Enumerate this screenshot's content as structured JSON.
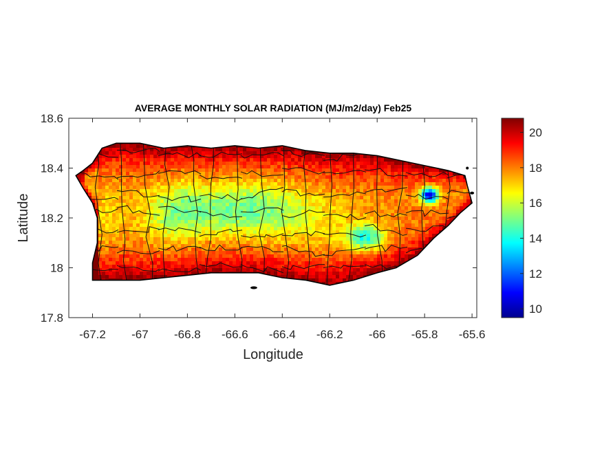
{
  "chart_data": {
    "type": "heatmap",
    "title": "AVERAGE MONTHLY SOLAR RADIATION (MJ/m2/day) Feb25",
    "xlabel": "Longitude",
    "ylabel": "Latitude",
    "xlim": [
      -67.3,
      -65.58
    ],
    "ylim": [
      17.8,
      18.6
    ],
    "xticks": [
      -67.2,
      -67,
      -66.8,
      -66.6,
      -66.4,
      -66.2,
      -66,
      -65.8,
      -65.6
    ],
    "xtick_labels": [
      "-67.2",
      "-67",
      "-66.8",
      "-66.6",
      "-66.4",
      "-66.2",
      "-66",
      "-65.8",
      "-65.6"
    ],
    "yticks": [
      17.8,
      18,
      18.2,
      18.4,
      18.6
    ],
    "ytick_labels": [
      "17.8",
      "18",
      "18.2",
      "18.4",
      "18.6"
    ],
    "colorbar": {
      "colormap": "jet",
      "range": [
        9.5,
        20.8
      ],
      "ticks": [
        10,
        12,
        14,
        16,
        18,
        20
      ],
      "tick_labels": [
        "10",
        "12",
        "14",
        "16",
        "18",
        "20"
      ]
    },
    "island_outline": [
      [
        -67.27,
        18.37
      ],
      [
        -67.24,
        18.39
      ],
      [
        -67.2,
        18.42
      ],
      [
        -67.16,
        18.48
      ],
      [
        -67.1,
        18.5
      ],
      [
        -67.0,
        18.5
      ],
      [
        -66.9,
        18.48
      ],
      [
        -66.8,
        18.49
      ],
      [
        -66.7,
        18.48
      ],
      [
        -66.6,
        18.49
      ],
      [
        -66.5,
        18.48
      ],
      [
        -66.4,
        18.49
      ],
      [
        -66.3,
        18.47
      ],
      [
        -66.2,
        18.46
      ],
      [
        -66.1,
        18.46
      ],
      [
        -66.0,
        18.45
      ],
      [
        -65.9,
        18.43
      ],
      [
        -65.8,
        18.41
      ],
      [
        -65.7,
        18.39
      ],
      [
        -65.63,
        18.37
      ],
      [
        -65.62,
        18.33
      ],
      [
        -65.6,
        18.26
      ],
      [
        -65.65,
        18.22
      ],
      [
        -65.7,
        18.17
      ],
      [
        -65.76,
        18.12
      ],
      [
        -65.83,
        18.05
      ],
      [
        -65.92,
        18.0
      ],
      [
        -66.0,
        17.98
      ],
      [
        -66.1,
        17.95
      ],
      [
        -66.2,
        17.93
      ],
      [
        -66.3,
        17.95
      ],
      [
        -66.4,
        17.96
      ],
      [
        -66.5,
        17.98
      ],
      [
        -66.6,
        17.98
      ],
      [
        -66.7,
        17.98
      ],
      [
        -66.8,
        17.97
      ],
      [
        -66.9,
        17.96
      ],
      [
        -67.0,
        17.95
      ],
      [
        -67.1,
        17.95
      ],
      [
        -67.2,
        17.95
      ],
      [
        -67.2,
        18.02
      ],
      [
        -67.18,
        18.1
      ],
      [
        -67.18,
        18.2
      ],
      [
        -67.2,
        18.26
      ],
      [
        -67.24,
        18.32
      ]
    ],
    "field_components": {
      "base": 18.0,
      "features": [
        {
          "kind": "north_coast_high",
          "value": 20.3
        },
        {
          "kind": "south_coast_high",
          "value": 20.3
        },
        {
          "kind": "central_ridge_low",
          "value": 15.0
        },
        {
          "kind": "east_low",
          "lon": -66.05,
          "lat": 18.12,
          "value": 14.0
        },
        {
          "kind": "el_yunque_min",
          "lon": -65.78,
          "lat": 18.29,
          "value": 10.0
        }
      ]
    },
    "annotations": []
  }
}
